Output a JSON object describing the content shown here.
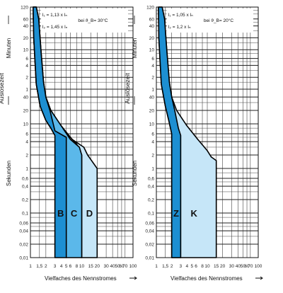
{
  "chart_data": [
    {
      "type": "area",
      "x_ticks": [
        "1",
        "1,5",
        "2",
        "3",
        "4",
        "5",
        "6",
        "8",
        "10",
        "15",
        "20",
        "30",
        "40",
        "50",
        "60",
        "70",
        "100"
      ],
      "y_minutes_ticks": [
        "120",
        "60",
        "40",
        "20",
        "10",
        "6",
        "4",
        "2",
        "1"
      ],
      "y_seconds_ticks": [
        "40",
        "20",
        "10",
        "6",
        "4",
        "2",
        "1",
        "0,6",
        "0,4",
        "0,2",
        "0,1",
        "0,06",
        "0,04",
        "0,02",
        "0,01"
      ],
      "y_label_minutes": "Minuten",
      "y_label_seconds": "Sekunden",
      "y_label_main": "Auslösezeit",
      "xlabel": "Vielfaches des Nennstromes",
      "conditions": [
        "I₁ = 1,13 x Iₙ",
        "I₂ = 1,45 x Iₙ",
        "bei ϑ_B= 30°C"
      ],
      "series": [
        {
          "name": "B",
          "color": "#1d8fd2",
          "upper": [
            [
              1.3,
              7200
            ],
            [
              1.45,
              3600
            ],
            [
              1.6,
              600
            ],
            [
              1.8,
              90
            ],
            [
              2.0,
              40
            ],
            [
              2.4,
              20
            ],
            [
              3.0,
              7
            ],
            [
              5.0,
              5
            ],
            [
              5.0,
              0.01
            ]
          ],
          "lower": [
            [
              1.13,
              7200
            ],
            [
              1.16,
              1200
            ],
            [
              1.3,
              80
            ],
            [
              1.55,
              25
            ],
            [
              2.0,
              12
            ],
            [
              2.5,
              8
            ],
            [
              3.0,
              5.5
            ],
            [
              3.0,
              0.01
            ]
          ]
        },
        {
          "name": "C",
          "color": "#5bb8ea",
          "upper": [
            [
              1.3,
              7200
            ],
            [
              1.45,
              3600
            ],
            [
              1.6,
              600
            ],
            [
              1.8,
              90
            ],
            [
              2.0,
              40
            ],
            [
              2.5,
              20
            ],
            [
              4.0,
              9
            ],
            [
              6.0,
              4.5
            ],
            [
              9.0,
              3
            ],
            [
              10.0,
              2
            ],
            [
              10.0,
              0.01
            ]
          ],
          "lower": [
            [
              1.13,
              7200
            ],
            [
              1.16,
              1200
            ],
            [
              1.3,
              80
            ],
            [
              1.55,
              25
            ],
            [
              2.0,
              12
            ],
            [
              2.5,
              8
            ],
            [
              3.0,
              5.5
            ],
            [
              5.0,
              5
            ],
            [
              5.0,
              0.01
            ]
          ]
        },
        {
          "name": "D",
          "color": "#c6e6f8",
          "upper": [
            [
              1.3,
              7200
            ],
            [
              1.45,
              3600
            ],
            [
              1.6,
              600
            ],
            [
              1.8,
              90
            ],
            [
              2.0,
              40
            ],
            [
              2.5,
              20
            ],
            [
              4.0,
              9
            ],
            [
              6.5,
              4.5
            ],
            [
              11.0,
              3
            ],
            [
              13.0,
              2
            ],
            [
              20.0,
              1
            ],
            [
              20.0,
              0.01
            ]
          ],
          "lower": [
            [
              1.13,
              7200
            ],
            [
              1.16,
              1200
            ],
            [
              1.3,
              80
            ],
            [
              1.55,
              25
            ],
            [
              2.0,
              12
            ],
            [
              2.5,
              8
            ],
            [
              4.0,
              6
            ],
            [
              6.0,
              5
            ],
            [
              8.0,
              3.5
            ],
            [
              10.0,
              2
            ],
            [
              10.0,
              0.01
            ]
          ]
        }
      ]
    },
    {
      "type": "area",
      "x_ticks": [
        "1",
        "1,5",
        "2",
        "3",
        "4",
        "5",
        "6",
        "8",
        "10",
        "15",
        "20",
        "30",
        "40",
        "50",
        "60",
        "70",
        "100"
      ],
      "y_minutes_ticks": [
        "120",
        "60",
        "40",
        "20",
        "10",
        "6",
        "4",
        "2",
        "1"
      ],
      "y_seconds_ticks": [
        "40",
        "20",
        "10",
        "6",
        "4",
        "2",
        "1",
        "0,6",
        "0,4",
        "0,2",
        "0,1",
        "0,06",
        "0,04",
        "0,02",
        "0,01"
      ],
      "y_label_minutes": "Minuten",
      "y_label_seconds": "Sekunden",
      "y_label_main": "Auslösezeit",
      "xlabel": "Vielfaches des Nennstromes",
      "conditions": [
        "I₁ = 1,05 x Iₙ",
        "I₂ = 1,2 x Iₙ",
        "bei ϑ_B= 20°C"
      ],
      "series": [
        {
          "name": "Z",
          "color": "#1d8fd2",
          "upper": [
            [
              1.3,
              7200
            ],
            [
              1.45,
              3600
            ],
            [
              1.6,
              600
            ],
            [
              1.8,
              90
            ],
            [
              2.0,
              40
            ],
            [
              2.3,
              20
            ],
            [
              2.7,
              8
            ],
            [
              3.0,
              5.5
            ],
            [
              3.0,
              0.01
            ]
          ],
          "lower": [
            [
              1.1,
              7200
            ],
            [
              1.12,
              1200
            ],
            [
              1.25,
              80
            ],
            [
              1.5,
              25
            ],
            [
              1.75,
              12
            ],
            [
              2.0,
              6
            ],
            [
              2.0,
              0.01
            ]
          ]
        },
        {
          "name": "K",
          "color": "#c6e6f8",
          "upper": [
            [
              1.3,
              7200
            ],
            [
              1.45,
              3600
            ],
            [
              1.6,
              600
            ],
            [
              1.8,
              90
            ],
            [
              2.0,
              40
            ],
            [
              2.5,
              20
            ],
            [
              4.0,
              9
            ],
            [
              6.5,
              4.5
            ],
            [
              10.0,
              2.5
            ],
            [
              12.0,
              1.8
            ],
            [
              15.0,
              1.5
            ],
            [
              15.0,
              0.01
            ]
          ],
          "lower": [
            [
              1.1,
              7200
            ],
            [
              1.12,
              1200
            ],
            [
              1.25,
              80
            ],
            [
              1.5,
              25
            ],
            [
              1.75,
              12
            ],
            [
              2.0,
              6
            ],
            [
              2.0,
              0.01
            ]
          ]
        }
      ]
    }
  ]
}
